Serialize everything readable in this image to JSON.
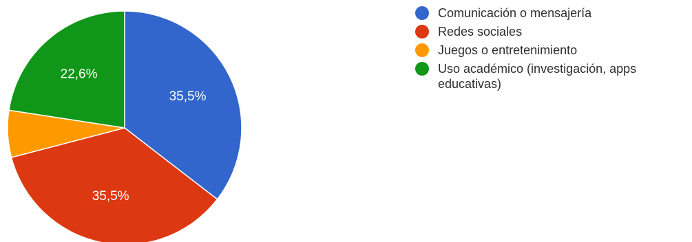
{
  "chart_data": {
    "type": "pie",
    "title": "",
    "slices": [
      {
        "name": "Comunicación o mensajería",
        "value": 35.5,
        "label": "35,5%",
        "color": "#3366cc"
      },
      {
        "name": "Redes sociales",
        "value": 35.5,
        "label": "35,5%",
        "color": "#dc3912"
      },
      {
        "name": "Juegos o entretenimiento",
        "value": 6.5,
        "label": "",
        "color": "#ff9900"
      },
      {
        "name": "Uso académico (investigación, apps educativas)",
        "value": 22.6,
        "label": "22,6%",
        "color": "#109618"
      }
    ],
    "start_angle_deg": 90,
    "direction": "clockwise",
    "legend_position": "right"
  },
  "legend": [
    {
      "label": "Comunicación o mensajería",
      "color": "#3366cc"
    },
    {
      "label": "Redes sociales",
      "color": "#dc3912"
    },
    {
      "label": "Juegos o entretenimiento",
      "color": "#ff9900"
    },
    {
      "label": "Uso académico (investigación, apps educativas)",
      "color": "#109618"
    }
  ]
}
